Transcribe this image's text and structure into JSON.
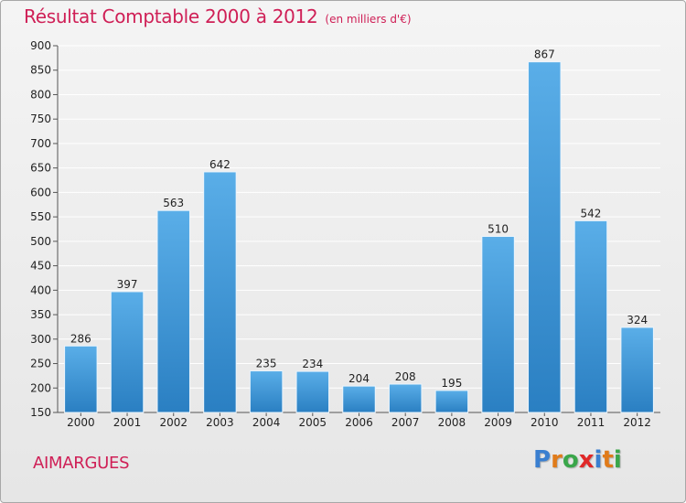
{
  "title": "Résultat Comptable 2000 à 2012",
  "subtitle": "(en milliers d'€)",
  "location": "AIMARGUES",
  "logo": {
    "letters": [
      "P",
      "r",
      "o",
      "x",
      "i",
      "t",
      "i"
    ],
    "colors": [
      "#3a7fd0",
      "#e07b1a",
      "#3aa64a",
      "#e02828",
      "#3a7fd0",
      "#e07b1a",
      "#3aa64a"
    ]
  },
  "colors": {
    "bar_top": "#5aaee8",
    "bar_bottom": "#2a7fc2",
    "title": "#cf1f56",
    "grid": "#ffffff"
  },
  "chart_data": {
    "type": "bar",
    "title": "Résultat Comptable 2000 à 2012",
    "subtitle": "(en milliers d'€)",
    "categories": [
      "2000",
      "2001",
      "2002",
      "2003",
      "2004",
      "2005",
      "2006",
      "2007",
      "2008",
      "2009",
      "2010",
      "2011",
      "2012"
    ],
    "values": [
      286,
      397,
      563,
      642,
      235,
      234,
      204,
      208,
      195,
      510,
      867,
      542,
      324
    ],
    "value_labels": [
      "286",
      "397",
      "563",
      "642",
      "235",
      "234",
      "204",
      "208",
      "195",
      "510",
      "867",
      "542",
      "324"
    ],
    "ylim": [
      150,
      900
    ],
    "yticks": [
      150,
      200,
      250,
      300,
      350,
      400,
      450,
      500,
      550,
      600,
      650,
      700,
      750,
      800,
      850,
      900
    ],
    "grid": true,
    "xlabel": "",
    "ylabel": ""
  }
}
